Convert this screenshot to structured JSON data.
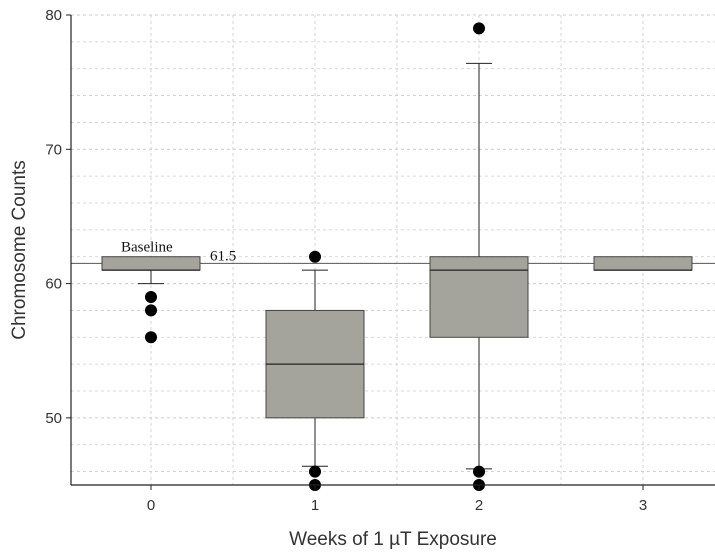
{
  "chart_data": {
    "type": "box",
    "xlabel": "Weeks of 1 µT Exposure",
    "ylabel": "Chromosome Counts",
    "categories": [
      "0",
      "1",
      "2",
      "3"
    ],
    "ylim": [
      45,
      80
    ],
    "yticks": [
      50,
      60,
      70,
      80
    ],
    "grid": true,
    "reference_line": {
      "value": 61.5,
      "label": "61.5"
    },
    "annotations": [
      {
        "text": "Baseline",
        "category": "0"
      }
    ],
    "boxes": [
      {
        "category": "0",
        "whisker_low": 60,
        "q1": 61,
        "median": 61,
        "q3": 62,
        "whisker_high": 62,
        "outliers": [
          59,
          58,
          56
        ]
      },
      {
        "category": "1",
        "whisker_low": 46.4,
        "q1": 50,
        "median": 54,
        "q3": 58,
        "whisker_high": 61,
        "outliers": [
          62,
          46,
          45
        ]
      },
      {
        "category": "2",
        "whisker_low": 46.2,
        "q1": 56,
        "median": 61,
        "q3": 62,
        "whisker_high": 76.4,
        "outliers": [
          79,
          46,
          45
        ]
      },
      {
        "category": "3",
        "whisker_low": 61,
        "q1": 61,
        "median": 61,
        "q3": 62,
        "whisker_high": 62,
        "outliers": []
      }
    ],
    "colors": {
      "box_fill": "#a4a49c",
      "box_stroke": "#444444",
      "grid": "#cccccc",
      "outlier": "#000000"
    }
  }
}
